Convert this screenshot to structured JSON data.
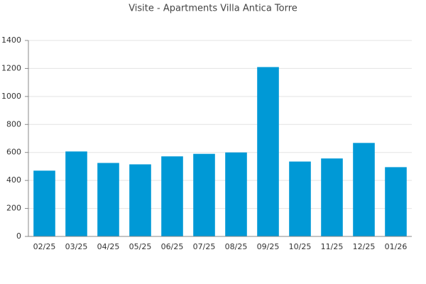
{
  "chart_data": {
    "type": "bar",
    "title": "Visite - Apartments Villa Antica Torre",
    "categories": [
      "02/25",
      "03/25",
      "04/25",
      "05/25",
      "06/25",
      "07/25",
      "08/25",
      "09/25",
      "10/25",
      "11/25",
      "12/25",
      "01/26"
    ],
    "values": [
      470,
      607,
      525,
      515,
      572,
      590,
      600,
      1210,
      535,
      557,
      668,
      495
    ],
    "color": "#0099d6",
    "ylim": [
      0,
      1400
    ],
    "yticks": [
      0,
      200,
      400,
      600,
      800,
      1000,
      1200,
      1400
    ],
    "grid": true
  }
}
